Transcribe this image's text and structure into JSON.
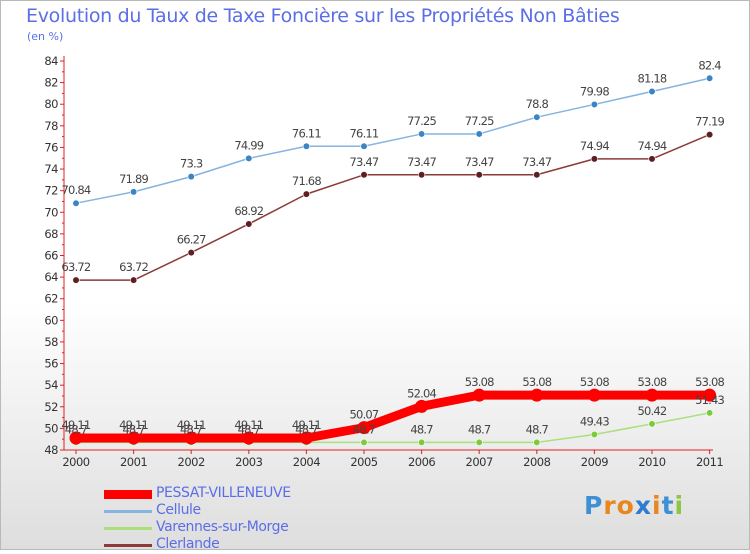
{
  "title": "Evolution du Taux de Taxe Foncière sur les Propriétés Non Bâties",
  "unit_label": "(en %)",
  "logo": {
    "letters": [
      "P",
      "r",
      "o",
      "x",
      "i",
      "t",
      "i"
    ],
    "colors": [
      "#3d8fd6",
      "#e8861f",
      "#e8861f",
      "#2e7bd0",
      "#e8861f",
      "#3d8fd6",
      "#8dc63f"
    ]
  },
  "chart_data": {
    "type": "line",
    "x": [
      "2000",
      "2001",
      "2002",
      "2003",
      "2004",
      "2005",
      "2006",
      "2007",
      "2008",
      "2009",
      "2010",
      "2011"
    ],
    "ylim": [
      48,
      84
    ],
    "yticks": [
      48,
      50,
      52,
      54,
      56,
      58,
      60,
      62,
      64,
      66,
      68,
      70,
      72,
      74,
      76,
      78,
      80,
      82,
      84
    ],
    "grid": false,
    "legend_position": "bottom-left",
    "series": [
      {
        "name": "PESSAT-VILLENEUVE",
        "color": "#ff0000",
        "marker": "#ff0000",
        "width": 9,
        "values": [
          49.11,
          49.11,
          49.11,
          49.11,
          49.11,
          50.07,
          52.04,
          53.08,
          53.08,
          53.08,
          53.08,
          53.08
        ],
        "labels": [
          "49.11",
          "49.11",
          "49.11",
          "49.11",
          "49.11",
          "50.07",
          "52.04",
          "53.08",
          "53.08",
          "53.08",
          "53.08",
          "53.08"
        ]
      },
      {
        "name": "Cellule",
        "color": "#86b3e0",
        "marker": "#3b84c6",
        "width": 1.5,
        "values": [
          70.84,
          71.89,
          73.3,
          74.99,
          76.11,
          76.11,
          77.25,
          77.25,
          78.8,
          79.98,
          81.18,
          82.4
        ],
        "labels": [
          "70.84",
          "71.89",
          "73.3",
          "74.99",
          "76.11",
          "76.11",
          "77.25",
          "77.25",
          "78.8",
          "79.98",
          "81.18",
          "82.4"
        ]
      },
      {
        "name": "Varennes-sur-Morge",
        "color": "#a9e07a",
        "marker": "#7ccb3b",
        "width": 1.5,
        "values": [
          48.7,
          48.7,
          48.7,
          48.7,
          48.7,
          48.7,
          48.7,
          48.7,
          48.7,
          49.43,
          50.42,
          51.43
        ],
        "labels": [
          "48.7",
          "48.7",
          "48.7",
          "48.7",
          "48.7",
          "48.7",
          "48.7",
          "48.7",
          "48.7",
          "49.43",
          "50.42",
          "51.43"
        ]
      },
      {
        "name": "Clerlande",
        "color": "#8b3a3a",
        "marker": "#5e1f1f",
        "width": 1.5,
        "values": [
          63.72,
          63.72,
          66.27,
          68.92,
          71.68,
          73.47,
          73.47,
          73.47,
          73.47,
          74.94,
          74.94,
          77.19
        ],
        "labels": [
          "63.72",
          "63.72",
          "66.27",
          "68.92",
          "71.68",
          "73.47",
          "73.47",
          "73.47",
          "73.47",
          "74.94",
          "74.94",
          "77.19"
        ]
      }
    ]
  }
}
